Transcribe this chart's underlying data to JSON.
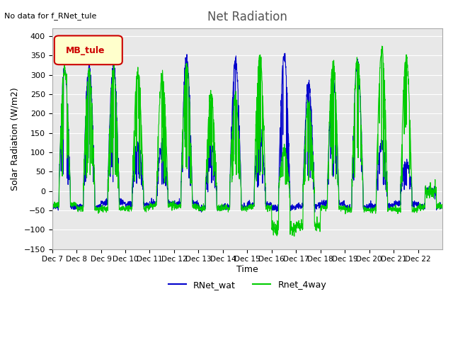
{
  "title": "Net Radiation",
  "ylabel": "Solar Radiation (W/m2)",
  "xlabel": "Time",
  "top_left_text": "No data for f_RNet_tule",
  "legend_label": "MB_tule",
  "ylim": [
    -150,
    420
  ],
  "yticks": [
    -150,
    -100,
    -50,
    0,
    50,
    100,
    150,
    200,
    250,
    300,
    350,
    400
  ],
  "xtick_labels": [
    "Dec 7",
    "Dec 8",
    "Dec 9",
    "Dec 10",
    "Dec 11",
    "Dec 12",
    "Dec 13",
    "Dec 14",
    "Dec 15",
    "Dec 16",
    "Dec 17",
    "Dec 18",
    "Dec 19",
    "Dec 20",
    "Dec 21",
    "Dec 22"
  ],
  "color_blue": "#0000CC",
  "color_green": "#00CC00",
  "bg_color": "#E8E8E8",
  "legend_box_color": "#FFFFCC",
  "legend_box_edge": "#CC0000",
  "title_color": "#555555",
  "n_points_per_day": 144,
  "n_days": 16,
  "seed": 42,
  "blue_peaks": [
    315,
    320,
    325,
    120,
    115,
    345,
    120,
    335,
    150,
    350,
    280,
    290,
    330,
    120,
    70,
    0
  ],
  "green_peaks": [
    315,
    310,
    310,
    305,
    302,
    325,
    250,
    245,
    350,
    105,
    225,
    330,
    340,
    365,
    345,
    0
  ]
}
